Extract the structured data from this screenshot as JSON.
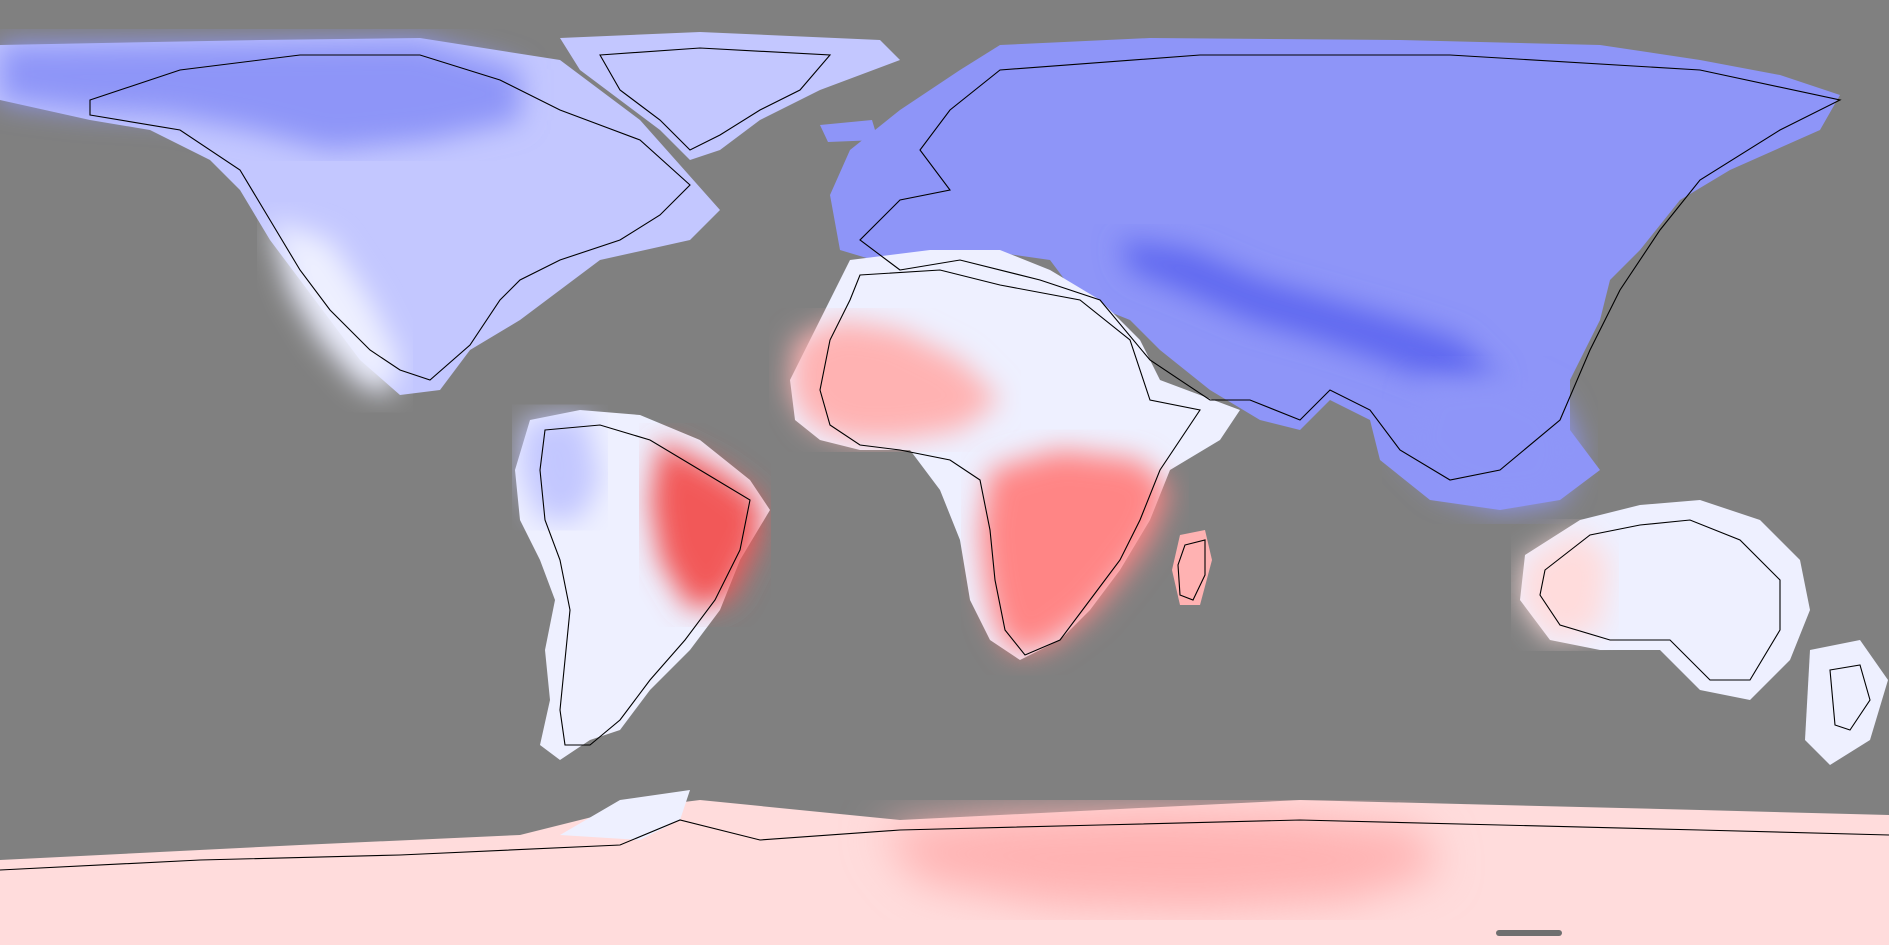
{
  "map": {
    "projection": "equirectangular",
    "background_color": "#808080",
    "coastline_color": "#000000",
    "palette": {
      "deep_blue": "#5f68f0",
      "blue": "#8e95f8",
      "light_blue": "#c3c7ff",
      "near_white": "#eef0ff",
      "white": "#ffffff",
      "pale_red": "#ffdcdc",
      "light_red": "#ffb2b2",
      "red": "#ff8585",
      "deep_red": "#f25858"
    },
    "regions": [
      {
        "name": "arctic-canada-alaska",
        "level": "blue"
      },
      {
        "name": "north-america",
        "level": "light_blue"
      },
      {
        "name": "western-north-america",
        "level": "near_white"
      },
      {
        "name": "greenland",
        "level": "light_blue"
      },
      {
        "name": "europe-asia",
        "level": "blue"
      },
      {
        "name": "tibet-himalaya",
        "level": "deep_blue"
      },
      {
        "name": "southeast-asia",
        "level": "blue"
      },
      {
        "name": "sahara",
        "level": "near_white"
      },
      {
        "name": "west-africa",
        "level": "light_red"
      },
      {
        "name": "southern-africa",
        "level": "red"
      },
      {
        "name": "madagascar",
        "level": "light_red"
      },
      {
        "name": "south-america",
        "level": "near_white"
      },
      {
        "name": "east-brazil",
        "level": "deep_red"
      },
      {
        "name": "australia",
        "level": "near_white"
      },
      {
        "name": "new-zealand",
        "level": "near_white"
      },
      {
        "name": "antarctica",
        "level": "pale_red"
      },
      {
        "name": "east-antarctica",
        "level": "light_red"
      }
    ]
  },
  "scrollbar": {
    "visible": true
  }
}
